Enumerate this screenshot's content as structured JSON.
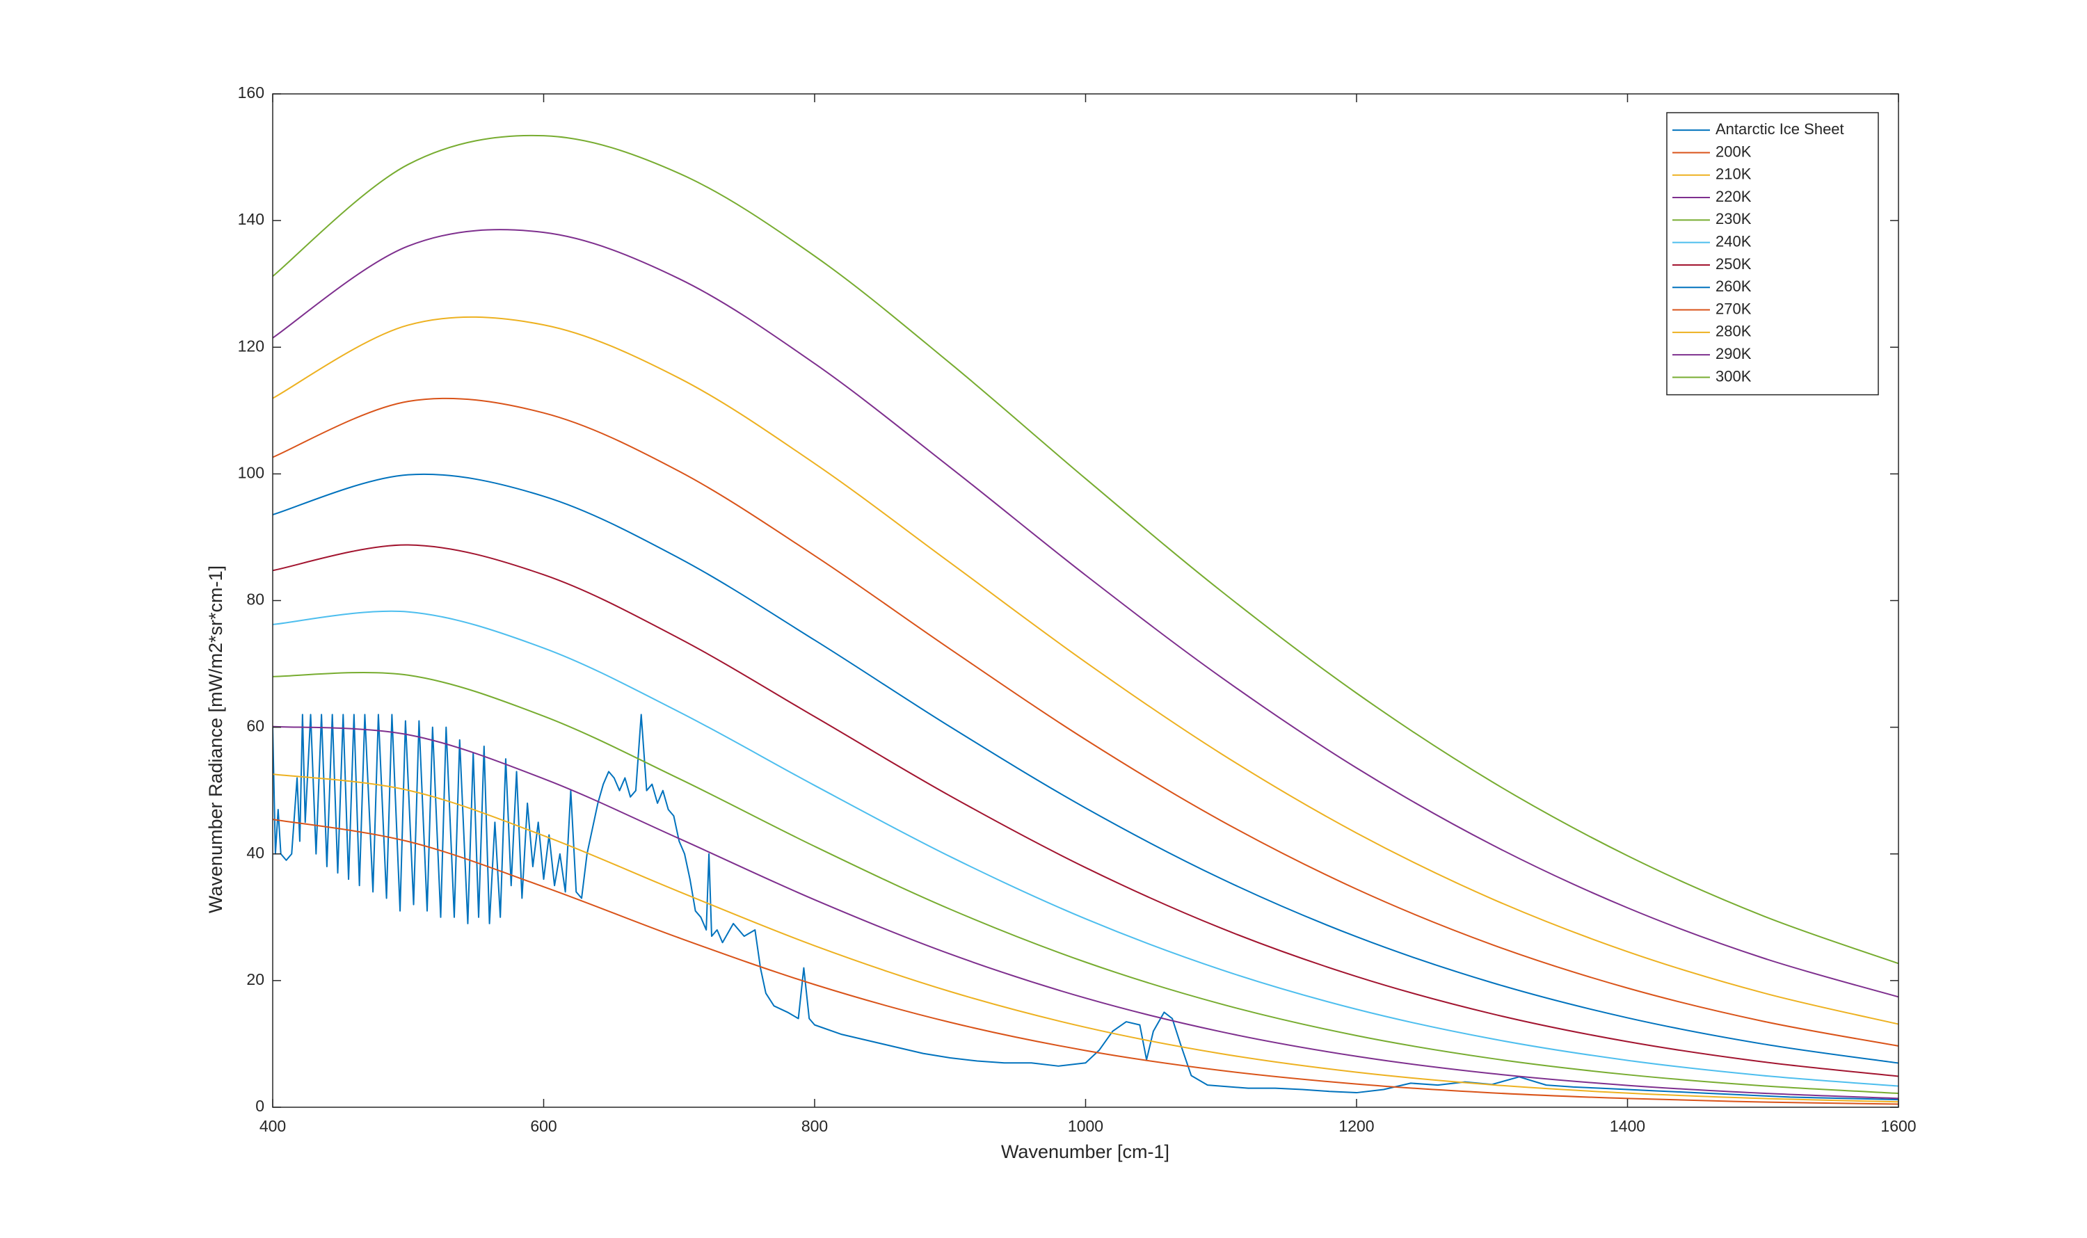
{
  "chart_data": {
    "type": "line",
    "xlabel": "Wavenumber [cm-1]",
    "ylabel": "Wavenumber Radiance [mW/m2*sr*cm-1]",
    "x": [
      400,
      500,
      600,
      700,
      800,
      900,
      1000,
      1100,
      1200,
      1300,
      1400,
      1500,
      1600
    ],
    "series": [
      {
        "name": "Antarctic Ice Sheet",
        "color": "#0072BD",
        "smooth": false,
        "x": [
          400,
          402,
          404,
          406,
          410,
          414,
          418,
          420,
          422,
          424,
          428,
          432,
          436,
          440,
          444,
          448,
          452,
          456,
          460,
          464,
          468,
          474,
          478,
          484,
          488,
          494,
          498,
          504,
          508,
          514,
          518,
          524,
          528,
          534,
          538,
          544,
          548,
          552,
          556,
          560,
          564,
          568,
          572,
          576,
          580,
          584,
          588,
          592,
          596,
          600,
          604,
          608,
          612,
          616,
          620,
          624,
          628,
          632,
          636,
          640,
          644,
          648,
          652,
          656,
          660,
          664,
          668,
          672,
          676,
          680,
          684,
          688,
          692,
          696,
          700,
          704,
          708,
          712,
          716,
          720,
          722,
          724,
          728,
          732,
          740,
          748,
          756,
          760,
          764,
          770,
          780,
          788,
          792,
          796,
          800,
          820,
          840,
          860,
          880,
          900,
          920,
          940,
          960,
          980,
          1000,
          1010,
          1020,
          1030,
          1040,
          1045,
          1050,
          1058,
          1064,
          1070,
          1078,
          1090,
          1120,
          1140,
          1160,
          1180,
          1200,
          1220,
          1240,
          1260,
          1280,
          1300,
          1320,
          1340,
          1360,
          1380,
          1400,
          1420,
          1440,
          1460,
          1480,
          1500,
          1520,
          1540,
          1560,
          1580,
          1600
        ],
        "values": [
          60,
          40,
          47,
          40,
          39,
          40,
          52,
          42,
          62,
          45,
          62,
          40,
          62,
          38,
          62,
          37,
          62,
          36,
          62,
          35,
          62,
          34,
          62,
          33,
          62,
          31,
          61,
          32,
          61,
          31,
          60,
          30,
          60,
          30,
          58,
          29,
          56,
          30,
          57,
          29,
          45,
          30,
          55,
          35,
          53,
          33,
          48,
          38,
          45,
          36,
          43,
          35,
          40,
          34,
          50,
          34,
          33,
          40,
          44,
          48,
          51,
          53,
          52,
          50,
          52,
          49,
          50,
          62,
          50,
          51,
          48,
          50,
          47,
          46,
          42,
          40,
          36,
          31,
          30,
          28,
          40,
          27,
          28,
          26,
          29,
          27,
          28,
          22,
          18,
          16,
          15,
          14,
          22,
          14,
          13,
          11.5,
          10.5,
          9.5,
          8.5,
          7.8,
          7.3,
          7,
          7,
          6.5,
          7,
          9,
          12,
          13.5,
          13,
          7.5,
          12,
          15,
          14,
          10,
          5,
          3.5,
          3,
          3,
          2.8,
          2.5,
          2.3,
          2.8,
          3.8,
          3.5,
          4,
          3.6,
          4.8,
          3.5,
          3.2,
          3,
          2.8,
          2.6,
          2.4,
          2.2,
          2,
          1.8,
          1.6,
          1.5,
          1.4,
          1.3,
          1.2
        ]
      },
      {
        "name": "200K",
        "color": "#D95319",
        "smooth": true,
        "values": [
          45.45,
          41.96,
          34.81,
          26.74,
          19.37,
          13.41,
          8.953,
          5.801,
          3.668,
          2.271,
          1.382,
          0.828,
          0.489
        ]
      },
      {
        "name": "210K",
        "color": "#EDB120",
        "smooth": true,
        "values": [
          52.59,
          50.05,
          42.88,
          34.04,
          25.5,
          18.27,
          12.62,
          8.458,
          5.534,
          3.546,
          2.232,
          1.383,
          0.846
        ]
      },
      {
        "name": "220K",
        "color": "#7E2F8E",
        "smooth": true,
        "values": [
          60.11,
          58.82,
          51.87,
          42.42,
          32.76,
          24.19,
          17.23,
          11.92,
          8.041,
          5.315,
          3.451,
          2.207,
          1.393
        ]
      },
      {
        "name": "230K",
        "color": "#77AC30",
        "smooth": true,
        "values": [
          68.0,
          68.22,
          61.75,
          51.88,
          41.19,
          31.27,
          22.91,
          16.3,
          11.31,
          7.694,
          5.14,
          3.382,
          2.195
        ]
      },
      {
        "name": "240K",
        "color": "#4DBEEE",
        "smooth": true,
        "values": [
          76.22,
          78.22,
          72.5,
          62.42,
          50.81,
          39.58,
          29.75,
          21.72,
          15.47,
          10.8,
          7.403,
          5.0,
          3.332
        ]
      },
      {
        "name": "250K",
        "color": "#A2142F",
        "smooth": true,
        "values": [
          84.75,
          88.78,
          84.08,
          74.03,
          61.67,
          49.16,
          37.84,
          28.28,
          20.64,
          14.75,
          10.36,
          7.164,
          4.89
        ]
      },
      {
        "name": "260K",
        "color": "#0072BD",
        "smooth": true,
        "values": [
          93.56,
          99.86,
          96.47,
          86.7,
          73.76,
          60.08,
          47.25,
          36.1,
          26.92,
          19.67,
          14.12,
          9.986,
          6.968
        ]
      },
      {
        "name": "270K",
        "color": "#D95319",
        "smooth": true,
        "values": [
          102.63,
          111.45,
          109.63,
          100.41,
          87.09,
          72.35,
          58.05,
          45.25,
          34.44,
          25.68,
          18.82,
          13.58,
          9.672
        ]
      },
      {
        "name": "280K",
        "color": "#EDB120",
        "smooth": true,
        "values": [
          111.94,
          123.49,
          123.53,
          115.12,
          101.64,
          85.99,
          70.28,
          55.83,
          43.3,
          32.9,
          24.57,
          18.07,
          13.12
        ]
      },
      {
        "name": "290K",
        "color": "#7E2F8E",
        "smooth": true,
        "values": [
          121.47,
          135.97,
          138.13,
          130.81,
          117.42,
          101.04,
          84.01,
          67.9,
          53.58,
          41.44,
          31.49,
          23.57,
          17.42
        ]
      },
      {
        "name": "300K",
        "color": "#77AC30",
        "smooth": true,
        "values": [
          131.2,
          148.86,
          153.4,
          147.45,
          134.4,
          117.48,
          99.25,
          81.51,
          65.38,
          51.39,
          39.71,
          30.22,
          22.7
        ]
      }
    ],
    "xlim": [
      400,
      1600
    ],
    "xticks": [
      400,
      600,
      800,
      1000,
      1200,
      1400,
      1600
    ],
    "ylim": [
      0,
      160
    ],
    "yticks": [
      0,
      20,
      40,
      60,
      80,
      100,
      120,
      140,
      160
    ],
    "grid": false,
    "legend": "upper right"
  }
}
